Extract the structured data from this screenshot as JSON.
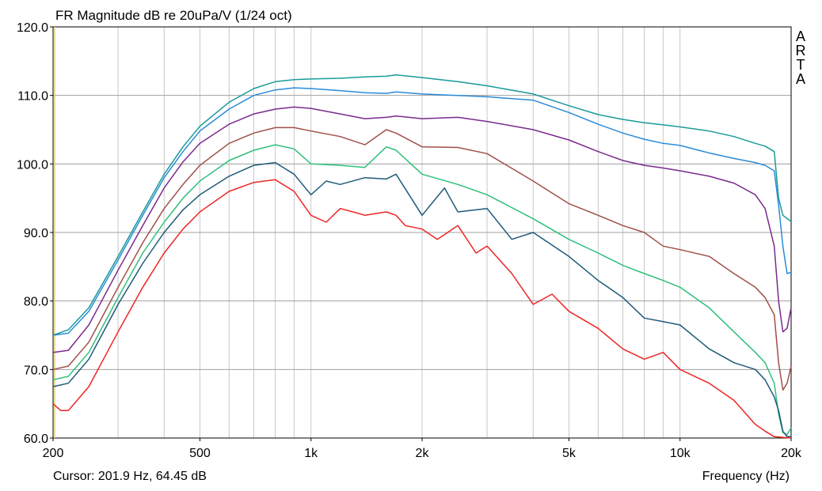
{
  "chart_data": {
    "type": "line",
    "title": "FR Magnitude dB re 20uPa/V (1/24 oct)",
    "xlabel": "Frequency (Hz)",
    "ylabel": "",
    "x_scale": "log",
    "xlim": [
      200,
      20000
    ],
    "ylim": [
      60,
      120
    ],
    "grid": true,
    "legend": "none",
    "cursor_readout": "Cursor: 201.9 Hz, 64.45 dB",
    "watermark_letters": [
      "A",
      "R",
      "T",
      "A"
    ],
    "x_ticks": [
      200,
      300,
      400,
      500,
      600,
      700,
      800,
      900,
      1000,
      2000,
      3000,
      4000,
      5000,
      6000,
      7000,
      8000,
      9000,
      10000,
      20000
    ],
    "x_tick_labels": [
      {
        "value": 200,
        "label": "200"
      },
      {
        "value": 500,
        "label": "500"
      },
      {
        "value": 1000,
        "label": "1k"
      },
      {
        "value": 2000,
        "label": "2k"
      },
      {
        "value": 5000,
        "label": "5k"
      },
      {
        "value": 10000,
        "label": "10k"
      },
      {
        "value": 20000,
        "label": "20k"
      }
    ],
    "y_ticks": [
      {
        "value": 60,
        "label": "60.0"
      },
      {
        "value": 70,
        "label": "70.0"
      },
      {
        "value": 80,
        "label": "80.0"
      },
      {
        "value": 90,
        "label": "90.0"
      },
      {
        "value": 100,
        "label": "100.0"
      },
      {
        "value": 110,
        "label": "110.0"
      },
      {
        "value": 120,
        "label": "120.0"
      }
    ],
    "series": [
      {
        "color": "#1a9a9a",
        "points": [
          [
            200,
            75
          ],
          [
            220,
            75.8
          ],
          [
            250,
            79
          ],
          [
            300,
            86.5
          ],
          [
            350,
            93
          ],
          [
            400,
            98.5
          ],
          [
            450,
            102.5
          ],
          [
            500,
            105.5
          ],
          [
            600,
            109
          ],
          [
            700,
            111
          ],
          [
            800,
            112
          ],
          [
            900,
            112.3
          ],
          [
            1000,
            112.4
          ],
          [
            1200,
            112.5
          ],
          [
            1400,
            112.7
          ],
          [
            1600,
            112.8
          ],
          [
            1700,
            113
          ],
          [
            2000,
            112.6
          ],
          [
            2500,
            112
          ],
          [
            3000,
            111.4
          ],
          [
            4000,
            110.2
          ],
          [
            5000,
            108.5
          ],
          [
            6000,
            107.2
          ],
          [
            7000,
            106.5
          ],
          [
            8000,
            106
          ],
          [
            9000,
            105.7
          ],
          [
            10000,
            105.4
          ],
          [
            12000,
            104.8
          ],
          [
            14000,
            104
          ],
          [
            16000,
            103
          ],
          [
            17000,
            102.6
          ],
          [
            18000,
            101.8
          ],
          [
            18500,
            95
          ],
          [
            19000,
            92.5
          ],
          [
            20000,
            91.6
          ]
        ]
      },
      {
        "color": "#2a8bd8",
        "points": [
          [
            200,
            75
          ],
          [
            220,
            75.3
          ],
          [
            250,
            78.5
          ],
          [
            300,
            86
          ],
          [
            350,
            92.5
          ],
          [
            400,
            98
          ],
          [
            450,
            101.8
          ],
          [
            500,
            104.8
          ],
          [
            600,
            108
          ],
          [
            700,
            110
          ],
          [
            800,
            110.8
          ],
          [
            900,
            111.1
          ],
          [
            1000,
            111
          ],
          [
            1200,
            110.7
          ],
          [
            1400,
            110.4
          ],
          [
            1600,
            110.3
          ],
          [
            1700,
            110.5
          ],
          [
            2000,
            110.2
          ],
          [
            2500,
            110
          ],
          [
            3000,
            109.8
          ],
          [
            4000,
            109.3
          ],
          [
            5000,
            107.5
          ],
          [
            6000,
            105.8
          ],
          [
            7000,
            104.5
          ],
          [
            8000,
            103.6
          ],
          [
            9000,
            103
          ],
          [
            10000,
            102.7
          ],
          [
            12000,
            101.6
          ],
          [
            14000,
            100.8
          ],
          [
            16000,
            100.2
          ],
          [
            17000,
            99.8
          ],
          [
            18000,
            99
          ],
          [
            18500,
            94
          ],
          [
            19000,
            88
          ],
          [
            19500,
            84
          ],
          [
            20000,
            84.2
          ]
        ]
      },
      {
        "color": "#7a2a8c",
        "points": [
          [
            200,
            72.5
          ],
          [
            220,
            72.8
          ],
          [
            250,
            76.5
          ],
          [
            300,
            84.5
          ],
          [
            350,
            91
          ],
          [
            400,
            96.5
          ],
          [
            450,
            100.3
          ],
          [
            500,
            103
          ],
          [
            600,
            105.8
          ],
          [
            700,
            107.3
          ],
          [
            800,
            108
          ],
          [
            900,
            108.3
          ],
          [
            1000,
            108.1
          ],
          [
            1200,
            107.3
          ],
          [
            1400,
            106.6
          ],
          [
            1600,
            106.8
          ],
          [
            1700,
            107
          ],
          [
            2000,
            106.6
          ],
          [
            2500,
            106.8
          ],
          [
            3000,
            106.2
          ],
          [
            4000,
            105
          ],
          [
            5000,
            103.5
          ],
          [
            6000,
            101.8
          ],
          [
            7000,
            100.5
          ],
          [
            8000,
            99.8
          ],
          [
            9000,
            99.4
          ],
          [
            10000,
            99
          ],
          [
            12000,
            98.2
          ],
          [
            14000,
            97.2
          ],
          [
            16000,
            95.5
          ],
          [
            17000,
            93.5
          ],
          [
            18000,
            88
          ],
          [
            18500,
            80
          ],
          [
            19000,
            75.5
          ],
          [
            19500,
            76
          ],
          [
            20000,
            79
          ]
        ]
      },
      {
        "color": "#a0504a",
        "points": [
          [
            200,
            70
          ],
          [
            220,
            70.5
          ],
          [
            250,
            74
          ],
          [
            300,
            82
          ],
          [
            350,
            88.5
          ],
          [
            400,
            93.5
          ],
          [
            450,
            97
          ],
          [
            500,
            99.8
          ],
          [
            600,
            103
          ],
          [
            700,
            104.5
          ],
          [
            800,
            105.3
          ],
          [
            900,
            105.3
          ],
          [
            1000,
            104.8
          ],
          [
            1200,
            104
          ],
          [
            1400,
            102.8
          ],
          [
            1600,
            105
          ],
          [
            1700,
            104.5
          ],
          [
            2000,
            102.5
          ],
          [
            2500,
            102.4
          ],
          [
            3000,
            101.5
          ],
          [
            4000,
            97.5
          ],
          [
            5000,
            94.2
          ],
          [
            6000,
            92.5
          ],
          [
            7000,
            91
          ],
          [
            8000,
            90
          ],
          [
            9000,
            88
          ],
          [
            10000,
            87.5
          ],
          [
            12000,
            86.5
          ],
          [
            14000,
            84
          ],
          [
            16000,
            82
          ],
          [
            17000,
            80.5
          ],
          [
            18000,
            78
          ],
          [
            18500,
            71
          ],
          [
            19000,
            67
          ],
          [
            19500,
            68
          ],
          [
            20000,
            70.5
          ]
        ]
      },
      {
        "color": "#2ec07a",
        "points": [
          [
            200,
            68.5
          ],
          [
            220,
            69
          ],
          [
            250,
            72.5
          ],
          [
            300,
            80.5
          ],
          [
            350,
            87
          ],
          [
            400,
            91.5
          ],
          [
            450,
            95
          ],
          [
            500,
            97.5
          ],
          [
            600,
            100.5
          ],
          [
            700,
            102
          ],
          [
            800,
            102.8
          ],
          [
            900,
            102.2
          ],
          [
            1000,
            100
          ],
          [
            1200,
            99.8
          ],
          [
            1400,
            99.5
          ],
          [
            1600,
            102.5
          ],
          [
            1700,
            102
          ],
          [
            2000,
            98.5
          ],
          [
            2500,
            97
          ],
          [
            3000,
            95.5
          ],
          [
            4000,
            92
          ],
          [
            5000,
            89
          ],
          [
            6000,
            87
          ],
          [
            7000,
            85.2
          ],
          [
            8000,
            84
          ],
          [
            9000,
            83
          ],
          [
            10000,
            82
          ],
          [
            12000,
            79
          ],
          [
            14000,
            75.5
          ],
          [
            16000,
            72.5
          ],
          [
            17000,
            71
          ],
          [
            18000,
            68
          ],
          [
            18500,
            63.5
          ],
          [
            19000,
            60.8
          ],
          [
            19500,
            60.5
          ],
          [
            20000,
            61.5
          ]
        ]
      },
      {
        "color": "#1e5a7a",
        "points": [
          [
            200,
            67.5
          ],
          [
            220,
            68
          ],
          [
            250,
            71.5
          ],
          [
            300,
            79.5
          ],
          [
            350,
            85.5
          ],
          [
            400,
            90
          ],
          [
            450,
            93.3
          ],
          [
            500,
            95.5
          ],
          [
            600,
            98.2
          ],
          [
            700,
            99.8
          ],
          [
            800,
            100.2
          ],
          [
            900,
            98.5
          ],
          [
            1000,
            95.5
          ],
          [
            1100,
            97.5
          ],
          [
            1200,
            97
          ],
          [
            1400,
            98
          ],
          [
            1600,
            97.8
          ],
          [
            1700,
            98.5
          ],
          [
            2000,
            92.5
          ],
          [
            2300,
            96.5
          ],
          [
            2500,
            93
          ],
          [
            3000,
            93.5
          ],
          [
            3500,
            89
          ],
          [
            4000,
            90
          ],
          [
            5000,
            86.5
          ],
          [
            6000,
            83
          ],
          [
            7000,
            80.5
          ],
          [
            8000,
            77.5
          ],
          [
            9000,
            77
          ],
          [
            10000,
            76.5
          ],
          [
            12000,
            73
          ],
          [
            14000,
            71
          ],
          [
            16000,
            70
          ],
          [
            17000,
            68.5
          ],
          [
            18000,
            66
          ],
          [
            18500,
            64
          ],
          [
            19000,
            61
          ],
          [
            19500,
            60.2
          ],
          [
            20000,
            60.2
          ]
        ]
      },
      {
        "color": "#ee2525",
        "points": [
          [
            200,
            65
          ],
          [
            210,
            64
          ],
          [
            220,
            64
          ],
          [
            250,
            67.5
          ],
          [
            300,
            75.5
          ],
          [
            350,
            82
          ],
          [
            400,
            87
          ],
          [
            450,
            90.5
          ],
          [
            500,
            93
          ],
          [
            600,
            96
          ],
          [
            700,
            97.3
          ],
          [
            800,
            97.7
          ],
          [
            900,
            96
          ],
          [
            1000,
            92.5
          ],
          [
            1100,
            91.5
          ],
          [
            1200,
            93.5
          ],
          [
            1300,
            93
          ],
          [
            1400,
            92.5
          ],
          [
            1600,
            93
          ],
          [
            1700,
            92.5
          ],
          [
            1800,
            91
          ],
          [
            2000,
            90.5
          ],
          [
            2200,
            89
          ],
          [
            2500,
            91
          ],
          [
            2800,
            87
          ],
          [
            3000,
            88
          ],
          [
            3500,
            84
          ],
          [
            4000,
            79.5
          ],
          [
            4500,
            81
          ],
          [
            5000,
            78.5
          ],
          [
            6000,
            76
          ],
          [
            7000,
            73
          ],
          [
            8000,
            71.5
          ],
          [
            9000,
            72.5
          ],
          [
            10000,
            70
          ],
          [
            12000,
            68
          ],
          [
            14000,
            65.5
          ],
          [
            16000,
            62
          ],
          [
            17000,
            61
          ],
          [
            18000,
            60.2
          ],
          [
            20000,
            60
          ]
        ]
      }
    ]
  }
}
